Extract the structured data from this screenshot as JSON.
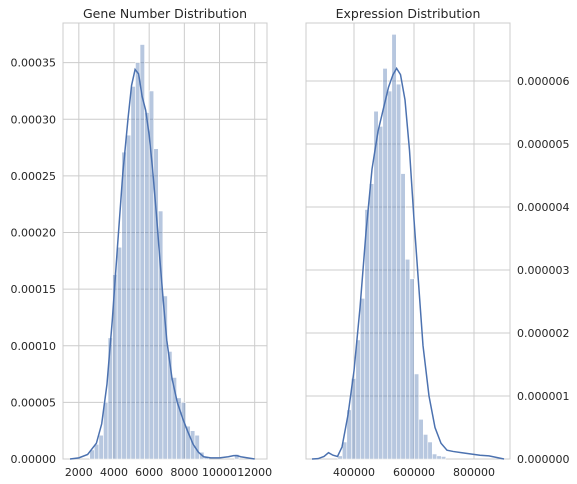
{
  "chart_data": [
    {
      "type": "bar",
      "title": "Gene Number Distribution",
      "xlabel": "",
      "ylabel": "",
      "xlim": [
        1100,
        12700
      ],
      "ylim": [
        0,
        0.000385
      ],
      "xticks": [
        2000,
        4000,
        6000,
        8000,
        10000,
        12000
      ],
      "xtick_labels": [
        "2000",
        "4000",
        "6000",
        "8000",
        "10000",
        "12000"
      ],
      "yticks": [
        0,
        5e-05,
        0.0001,
        0.00015,
        0.0002,
        0.00025,
        0.0003,
        0.00035
      ],
      "ytick_labels": [
        "0.00000",
        "0.00005",
        "0.00010",
        "0.00015",
        "0.00020",
        "0.00025",
        "0.00030",
        "0.00035"
      ],
      "yaxis_side": "left",
      "grid": true,
      "bar_color": "#4c72b0",
      "bar_alpha": 0.4,
      "kde_color": "#4c72b0",
      "bins": [
        {
          "x0": 2620,
          "x1": 2880,
          "y": 8e-06
        },
        {
          "x0": 2880,
          "x1": 3140,
          "y": 1.3e-05
        },
        {
          "x0": 3140,
          "x1": 3400,
          "y": 2.1e-05
        },
        {
          "x0": 3400,
          "x1": 3660,
          "y": 5e-05
        },
        {
          "x0": 3660,
          "x1": 3920,
          "y": 0.000107
        },
        {
          "x0": 3920,
          "x1": 4180,
          "y": 0.000163
        },
        {
          "x0": 4180,
          "x1": 4440,
          "y": 0.000187
        },
        {
          "x0": 4440,
          "x1": 4700,
          "y": 0.000271
        },
        {
          "x0": 4700,
          "x1": 4960,
          "y": 0.000286
        },
        {
          "x0": 4960,
          "x1": 5220,
          "y": 0.000329
        },
        {
          "x0": 5220,
          "x1": 5480,
          "y": 0.00035
        },
        {
          "x0": 5480,
          "x1": 5740,
          "y": 0.000366
        },
        {
          "x0": 5740,
          "x1": 6000,
          "y": 0.000306
        },
        {
          "x0": 6000,
          "x1": 6260,
          "y": 0.000325
        },
        {
          "x0": 6260,
          "x1": 6520,
          "y": 0.000274
        },
        {
          "x0": 6520,
          "x1": 6780,
          "y": 0.000219
        },
        {
          "x0": 6780,
          "x1": 7040,
          "y": 0.000144
        },
        {
          "x0": 7040,
          "x1": 7300,
          "y": 9.5e-05
        },
        {
          "x0": 7300,
          "x1": 7560,
          "y": 7.2e-05
        },
        {
          "x0": 7560,
          "x1": 7820,
          "y": 5.4e-05
        },
        {
          "x0": 7820,
          "x1": 8080,
          "y": 5e-05
        },
        {
          "x0": 8080,
          "x1": 8340,
          "y": 2.9e-05
        },
        {
          "x0": 8340,
          "x1": 8600,
          "y": 2.5e-05
        },
        {
          "x0": 8600,
          "x1": 8860,
          "y": 2.1e-05
        },
        {
          "x0": 8860,
          "x1": 9120,
          "y": 6e-06
        },
        {
          "x0": 9120,
          "x1": 9380,
          "y": 2e-06
        },
        {
          "x0": 10850,
          "x1": 11110,
          "y": 4e-06
        }
      ],
      "kde": {
        "x": [
          1500,
          2000,
          2500,
          3000,
          3300,
          3600,
          3900,
          4200,
          4500,
          4800,
          5000,
          5200,
          5400,
          5600,
          5800,
          6000,
          6200,
          6400,
          6600,
          6800,
          7000,
          7300,
          7600,
          7900,
          8200,
          8500,
          8800,
          9100,
          9500,
          10000,
          10500,
          10800,
          11000,
          11200,
          11600,
          12000
        ],
        "y": [
          0,
          1e-06,
          4e-06,
          1.4e-05,
          3.1e-05,
          6.6e-05,
          0.000122,
          0.000188,
          0.000252,
          0.000301,
          0.00033,
          0.000344,
          0.00034,
          0.00032,
          0.000308,
          0.000286,
          0.000255,
          0.000218,
          0.000178,
          0.00014,
          0.000105,
          7.1e-05,
          5e-05,
          3.6e-05,
          2.4e-05,
          1.3e-05,
          6e-06,
          2e-06,
          1e-06,
          1e-06,
          2e-06,
          3e-06,
          3e-06,
          2e-06,
          1e-06,
          0
        ]
      }
    },
    {
      "type": "bar",
      "title": "Expression Distribution",
      "xlabel": "",
      "ylabel": "",
      "xlim": [
        240000,
        920000
      ],
      "ylim": [
        0,
        6.92e-06
      ],
      "xticks": [
        400000,
        600000,
        800000
      ],
      "xtick_labels": [
        "400000",
        "600000",
        "800000"
      ],
      "yticks": [
        0,
        1e-06,
        2e-06,
        3e-06,
        4e-06,
        5e-06,
        6e-06
      ],
      "ytick_labels": [
        "0.000000",
        "0.000001",
        "0.000002",
        "0.000003",
        "0.000004",
        "0.000005",
        "0.000006"
      ],
      "yaxis_side": "right",
      "grid": true,
      "bar_color": "#4c72b0",
      "bar_alpha": 0.4,
      "kde_color": "#4c72b0",
      "bins": [
        {
          "x0": 346000,
          "x1": 361000,
          "y": 5e-08
        },
        {
          "x0": 361000,
          "x1": 376000,
          "y": 2.7e-07
        },
        {
          "x0": 376000,
          "x1": 391000,
          "y": 7.8e-07
        },
        {
          "x0": 391000,
          "x1": 406000,
          "y": 1.28e-06
        },
        {
          "x0": 406000,
          "x1": 421000,
          "y": 1.89e-06
        },
        {
          "x0": 421000,
          "x1": 436000,
          "y": 2.55e-06
        },
        {
          "x0": 436000,
          "x1": 451000,
          "y": 3.96e-06
        },
        {
          "x0": 451000,
          "x1": 466000,
          "y": 4.37e-06
        },
        {
          "x0": 466000,
          "x1": 481000,
          "y": 5.52e-06
        },
        {
          "x0": 481000,
          "x1": 496000,
          "y": 5.28e-06
        },
        {
          "x0": 496000,
          "x1": 511000,
          "y": 6.2e-06
        },
        {
          "x0": 511000,
          "x1": 526000,
          "y": 5.84e-06
        },
        {
          "x0": 526000,
          "x1": 541000,
          "y": 6.74e-06
        },
        {
          "x0": 541000,
          "x1": 556000,
          "y": 5.95e-06
        },
        {
          "x0": 556000,
          "x1": 571000,
          "y": 4.53e-06
        },
        {
          "x0": 571000,
          "x1": 586000,
          "y": 3.17e-06
        },
        {
          "x0": 586000,
          "x1": 601000,
          "y": 2.86e-06
        },
        {
          "x0": 601000,
          "x1": 616000,
          "y": 1.35e-06
        },
        {
          "x0": 616000,
          "x1": 631000,
          "y": 6.3e-07
        },
        {
          "x0": 631000,
          "x1": 646000,
          "y": 3.9e-07
        },
        {
          "x0": 646000,
          "x1": 661000,
          "y": 2.7e-07
        },
        {
          "x0": 661000,
          "x1": 676000,
          "y": 8e-08
        },
        {
          "x0": 676000,
          "x1": 691000,
          "y": 5e-08
        },
        {
          "x0": 691000,
          "x1": 706000,
          "y": 4e-08
        }
      ],
      "kde": {
        "x": [
          260000,
          280000,
          300000,
          315000,
          330000,
          345000,
          360000,
          380000,
          400000,
          420000,
          440000,
          460000,
          480000,
          500000,
          515000,
          530000,
          542000,
          555000,
          570000,
          585000,
          600000,
          615000,
          630000,
          650000,
          670000,
          690000,
          710000,
          730000,
          760000,
          790000,
          820000,
          850000,
          880000,
          900000
        ],
        "y": [
          0,
          5e-09,
          4e-08,
          1e-07,
          6e-08,
          4e-08,
          1.9e-07,
          7e-07,
          1.4e-06,
          2.4e-06,
          3.6e-06,
          4.6e-06,
          5.2e-06,
          5.6e-06,
          5.9e-06,
          6.1e-06,
          6.2e-06,
          6.1e-06,
          5.7e-06,
          4.9e-06,
          3.8e-06,
          2.8e-06,
          1.8e-06,
          1e-06,
          5e-07,
          2.5e-07,
          1.4e-07,
          1.2e-07,
          1e-07,
          8e-08,
          6e-08,
          5e-08,
          2e-08,
          0
        ]
      }
    }
  ]
}
